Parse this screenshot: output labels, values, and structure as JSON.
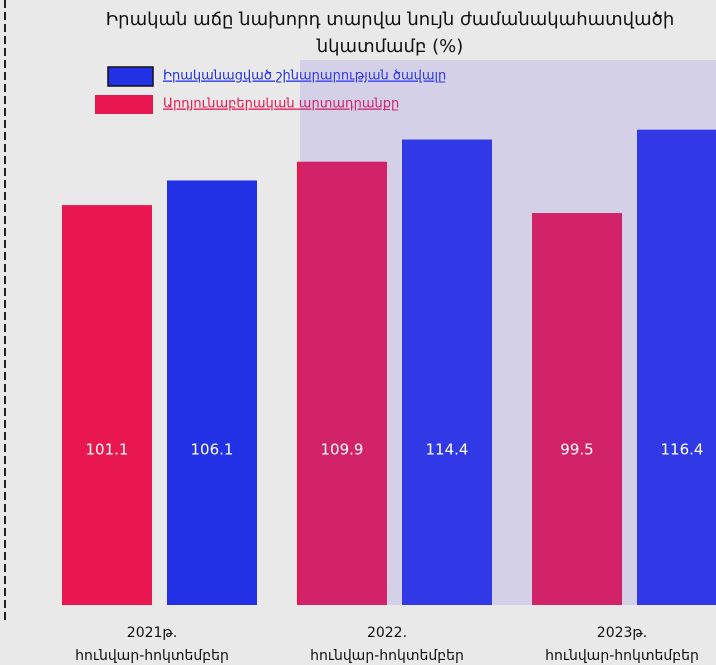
{
  "chart_data": {
    "type": "bar",
    "title": [
      "Իրական աճը նախորդ տարվա նույն ժամանակահատվածի",
      "նկատմամբ (%)"
    ],
    "categories": [
      [
        "2021թ.",
        "հունվար-հոկտեմբեր"
      ],
      [
        "2022.",
        "հունվար-հոկտեմբեր"
      ],
      [
        "2023թ.",
        "հունվար-հոկտեմբեր"
      ]
    ],
    "series": [
      {
        "name": "Արդյունաբերական արտադրանքը",
        "color": "#e8174f",
        "values": [
          101.1,
          109.9,
          99.5
        ]
      },
      {
        "name": "Իրականացված շինարարության ծավալը",
        "color": "#2331e6",
        "values": [
          106.1,
          114.4,
          116.4
        ]
      }
    ],
    "ylim": [
      20,
      120
    ]
  }
}
